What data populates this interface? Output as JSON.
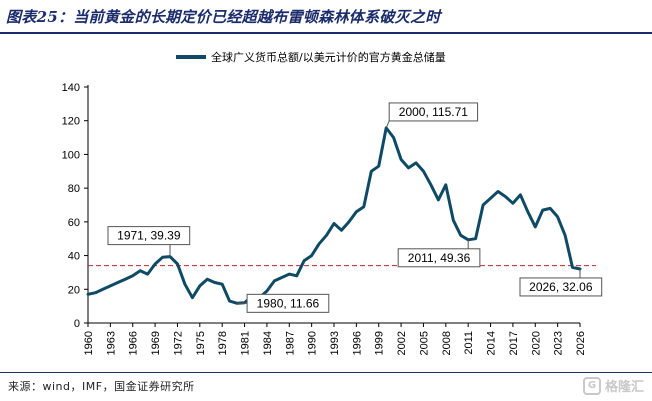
{
  "title": "图表25：当前黄金的长期定价已经超越布雷顿森林体系破灭之时",
  "source": "来源：wind，IMF，国金证券研究所",
  "watermark": "格隆汇",
  "colors": {
    "title": "#1a2c6b",
    "series": "#0e4a66",
    "reference_line": "#c0282d"
  },
  "chart_data": {
    "type": "line",
    "title": "",
    "xlabel": "",
    "ylabel": "",
    "xlim": [
      1960,
      2026
    ],
    "ylim": [
      0,
      140
    ],
    "y_ticks": [
      0,
      20,
      40,
      60,
      80,
      100,
      120,
      140
    ],
    "x_ticks": [
      1960,
      1963,
      1966,
      1969,
      1972,
      1975,
      1978,
      1981,
      1984,
      1987,
      1990,
      1993,
      1996,
      1999,
      2002,
      2005,
      2008,
      2011,
      2014,
      2017,
      2020,
      2023,
      2026
    ],
    "legend": "top-center",
    "grid": false,
    "series": [
      {
        "name": "全球广义货币总额/以美元计价的官方黄金总储量",
        "x": [
          1960,
          1961,
          1962,
          1963,
          1964,
          1965,
          1966,
          1967,
          1968,
          1969,
          1970,
          1971,
          1972,
          1973,
          1974,
          1975,
          1976,
          1977,
          1978,
          1979,
          1980,
          1981,
          1982,
          1983,
          1984,
          1985,
          1986,
          1987,
          1988,
          1989,
          1990,
          1991,
          1992,
          1993,
          1994,
          1995,
          1996,
          1997,
          1998,
          1999,
          2000,
          2001,
          2002,
          2003,
          2004,
          2005,
          2006,
          2007,
          2008,
          2009,
          2010,
          2011,
          2012,
          2013,
          2014,
          2015,
          2016,
          2017,
          2018,
          2019,
          2020,
          2021,
          2022,
          2023,
          2024,
          2025,
          2026
        ],
        "y": [
          17,
          18,
          20,
          22,
          24,
          26,
          28,
          31,
          29,
          35,
          39,
          39.39,
          35,
          23,
          15,
          22,
          26,
          24,
          23,
          13,
          11.66,
          12,
          16,
          15,
          19,
          25,
          27,
          29,
          28,
          37,
          40,
          47,
          52,
          59,
          55,
          60,
          66,
          69,
          90,
          93,
          115.71,
          110,
          97,
          92,
          95,
          90,
          82,
          73,
          82,
          61,
          52,
          49.36,
          50,
          70,
          74,
          78,
          75,
          71,
          76,
          66,
          57,
          67,
          68,
          63,
          52,
          33,
          32.06
        ]
      }
    ],
    "reference_line": {
      "y": 34,
      "style": "dashed"
    },
    "annotations": [
      {
        "text": "1971, 39.39",
        "x": 1971,
        "y": 39.39
      },
      {
        "text": "1980, 11.66",
        "x": 1980,
        "y": 11.66
      },
      {
        "text": "2000, 115.71",
        "x": 2000,
        "y": 115.71
      },
      {
        "text": "2011, 49.36",
        "x": 2011,
        "y": 49.36
      },
      {
        "text": "2026, 32.06",
        "x": 2026,
        "y": 32.06
      }
    ]
  }
}
